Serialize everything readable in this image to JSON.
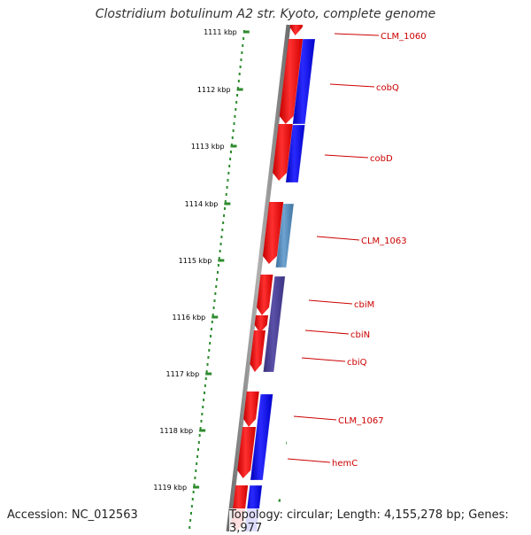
{
  "title": "Clostridium botulinum A2 str. Kyoto, complete genome",
  "footer": {
    "accession": "Accession: NC_012563",
    "summary": "Topology: circular; Length: 4,155,278 bp; Genes: 3,977"
  },
  "colors": {
    "backbone": "#8c8c8c",
    "forward_cds": "#ff0000",
    "reverse_cds": "#0000ff",
    "reverse_cds_alt1": "#4682b4",
    "reverse_cds_alt2": "#483d8b",
    "scale_ticks": "#2e8b2e",
    "gene_labels": "#cc0000"
  },
  "scale": {
    "unit": "kbp",
    "ticks": [
      "1111 kbp",
      "1112 kbp",
      "1113 kbp",
      "1114 kbp",
      "1115 kbp",
      "1116 kbp",
      "1117 kbp",
      "1118 kbp",
      "1119 kbp"
    ]
  },
  "genes": [
    {
      "label": "CLM_1060"
    },
    {
      "label": "cobQ"
    },
    {
      "label": "cobD"
    },
    {
      "label": "CLM_1063"
    },
    {
      "label": "cbiM"
    },
    {
      "label": "cbiN"
    },
    {
      "label": "cbiQ"
    },
    {
      "label": "CLM_1067"
    },
    {
      "label": "hemC"
    }
  ]
}
